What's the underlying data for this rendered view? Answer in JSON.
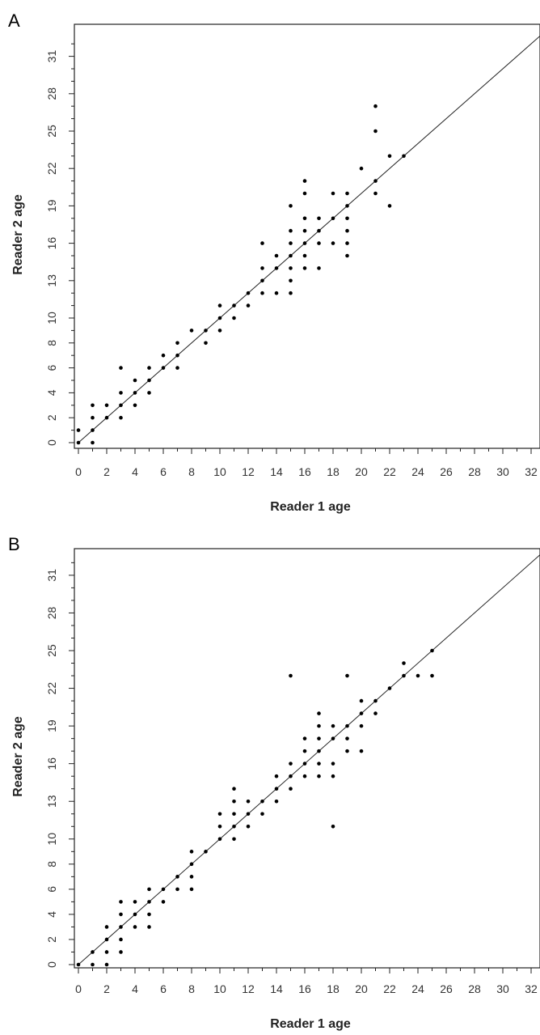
{
  "figure": {
    "panels": [
      {
        "letter": "A",
        "ylabel": "Reader 2 age",
        "xlabel": "Reader 1 age"
      },
      {
        "letter": "B",
        "ylabel": "Reader 2 age",
        "xlabel": "Reader 1 age"
      }
    ]
  },
  "chart_data": [
    {
      "type": "scatter",
      "panel": "A",
      "xlabel": "Reader 1 age",
      "ylabel": "Reader 2 age",
      "xlim": [
        0,
        33
      ],
      "ylim": [
        0,
        33
      ],
      "x_ticks": [
        0,
        2,
        4,
        6,
        8,
        10,
        12,
        14,
        16,
        18,
        20,
        22,
        24,
        26,
        28,
        30,
        32
      ],
      "y_ticks": [
        0,
        2,
        4,
        6,
        8,
        10,
        13,
        16,
        19,
        22,
        25,
        28,
        31
      ],
      "reference_line": "y = x",
      "points": [
        [
          0,
          0
        ],
        [
          0,
          1
        ],
        [
          1,
          0
        ],
        [
          1,
          1
        ],
        [
          1,
          2
        ],
        [
          1,
          3
        ],
        [
          2,
          2
        ],
        [
          2,
          3
        ],
        [
          3,
          2
        ],
        [
          3,
          3
        ],
        [
          3,
          4
        ],
        [
          3,
          6
        ],
        [
          4,
          3
        ],
        [
          4,
          4
        ],
        [
          4,
          5
        ],
        [
          5,
          4
        ],
        [
          5,
          5
        ],
        [
          5,
          6
        ],
        [
          6,
          6
        ],
        [
          6,
          7
        ],
        [
          7,
          6
        ],
        [
          7,
          7
        ],
        [
          7,
          8
        ],
        [
          8,
          9
        ],
        [
          9,
          8
        ],
        [
          9,
          9
        ],
        [
          10,
          9
        ],
        [
          10,
          10
        ],
        [
          10,
          11
        ],
        [
          11,
          10
        ],
        [
          11,
          11
        ],
        [
          12,
          11
        ],
        [
          12,
          12
        ],
        [
          13,
          12
        ],
        [
          13,
          13
        ],
        [
          13,
          14
        ],
        [
          13,
          16
        ],
        [
          14,
          12
        ],
        [
          14,
          14
        ],
        [
          14,
          15
        ],
        [
          15,
          12
        ],
        [
          15,
          13
        ],
        [
          15,
          14
        ],
        [
          15,
          15
        ],
        [
          15,
          16
        ],
        [
          15,
          17
        ],
        [
          15,
          19
        ],
        [
          16,
          14
        ],
        [
          16,
          15
        ],
        [
          16,
          16
        ],
        [
          16,
          17
        ],
        [
          16,
          18
        ],
        [
          16,
          20
        ],
        [
          16,
          21
        ],
        [
          17,
          14
        ],
        [
          17,
          16
        ],
        [
          17,
          17
        ],
        [
          17,
          18
        ],
        [
          18,
          16
        ],
        [
          18,
          18
        ],
        [
          18,
          20
        ],
        [
          19,
          15
        ],
        [
          19,
          16
        ],
        [
          19,
          17
        ],
        [
          19,
          18
        ],
        [
          19,
          19
        ],
        [
          19,
          20
        ],
        [
          20,
          22
        ],
        [
          21,
          20
        ],
        [
          21,
          21
        ],
        [
          21,
          25
        ],
        [
          21,
          27
        ],
        [
          22,
          19
        ],
        [
          22,
          23
        ],
        [
          23,
          23
        ]
      ]
    },
    {
      "type": "scatter",
      "panel": "B",
      "xlabel": "Reader 1 age",
      "ylabel": "Reader 2 age",
      "xlim": [
        0,
        33
      ],
      "ylim": [
        0,
        33
      ],
      "x_ticks": [
        0,
        2,
        4,
        6,
        8,
        10,
        12,
        14,
        16,
        18,
        20,
        22,
        24,
        26,
        28,
        30,
        32
      ],
      "y_ticks": [
        0,
        2,
        4,
        6,
        8,
        10,
        13,
        16,
        19,
        22,
        25,
        28,
        31
      ],
      "reference_line": "y = x",
      "points": [
        [
          0,
          0
        ],
        [
          1,
          0
        ],
        [
          1,
          1
        ],
        [
          2,
          0
        ],
        [
          2,
          1
        ],
        [
          2,
          2
        ],
        [
          2,
          3
        ],
        [
          3,
          1
        ],
        [
          3,
          2
        ],
        [
          3,
          3
        ],
        [
          3,
          4
        ],
        [
          3,
          5
        ],
        [
          4,
          3
        ],
        [
          4,
          4
        ],
        [
          4,
          5
        ],
        [
          5,
          3
        ],
        [
          5,
          4
        ],
        [
          5,
          5
        ],
        [
          5,
          6
        ],
        [
          6,
          5
        ],
        [
          6,
          6
        ],
        [
          7,
          6
        ],
        [
          7,
          7
        ],
        [
          8,
          6
        ],
        [
          8,
          7
        ],
        [
          8,
          8
        ],
        [
          8,
          9
        ],
        [
          9,
          9
        ],
        [
          10,
          10
        ],
        [
          10,
          11
        ],
        [
          10,
          12
        ],
        [
          11,
          10
        ],
        [
          11,
          11
        ],
        [
          11,
          12
        ],
        [
          11,
          13
        ],
        [
          11,
          14
        ],
        [
          12,
          11
        ],
        [
          12,
          12
        ],
        [
          12,
          13
        ],
        [
          13,
          12
        ],
        [
          13,
          13
        ],
        [
          14,
          13
        ],
        [
          14,
          14
        ],
        [
          14,
          15
        ],
        [
          15,
          14
        ],
        [
          15,
          15
        ],
        [
          15,
          16
        ],
        [
          15,
          23
        ],
        [
          16,
          15
        ],
        [
          16,
          16
        ],
        [
          16,
          17
        ],
        [
          16,
          18
        ],
        [
          17,
          15
        ],
        [
          17,
          16
        ],
        [
          17,
          17
        ],
        [
          17,
          18
        ],
        [
          17,
          19
        ],
        [
          17,
          20
        ],
        [
          18,
          11
        ],
        [
          18,
          15
        ],
        [
          18,
          16
        ],
        [
          18,
          18
        ],
        [
          18,
          19
        ],
        [
          19,
          17
        ],
        [
          19,
          18
        ],
        [
          19,
          19
        ],
        [
          19,
          23
        ],
        [
          20,
          17
        ],
        [
          20,
          19
        ],
        [
          20,
          20
        ],
        [
          20,
          21
        ],
        [
          21,
          20
        ],
        [
          21,
          21
        ],
        [
          22,
          22
        ],
        [
          23,
          23
        ],
        [
          23,
          24
        ],
        [
          24,
          23
        ],
        [
          25,
          23
        ],
        [
          25,
          25
        ]
      ]
    }
  ]
}
